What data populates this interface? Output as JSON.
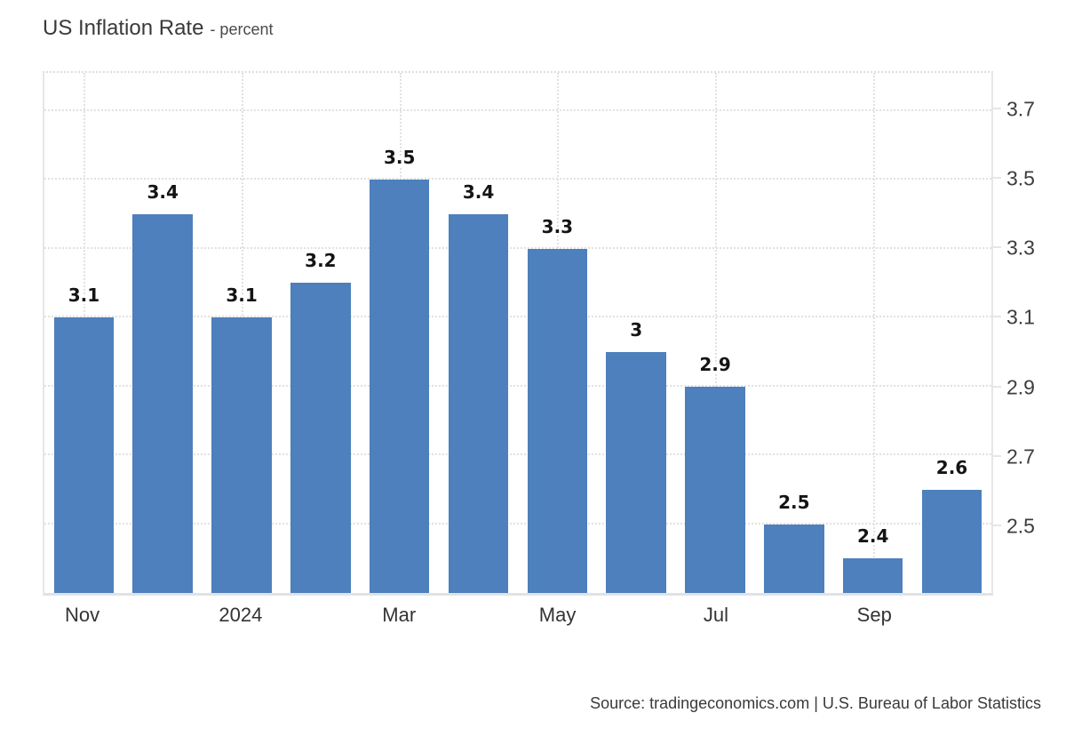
{
  "header": {
    "title": "US Inflation Rate",
    "subtitle": "- percent"
  },
  "footer": {
    "source": "Source: tradingeconomics.com | U.S. Bureau of Labor Statistics"
  },
  "chart_data": {
    "type": "bar",
    "title": "US Inflation Rate",
    "ylabel": "percent",
    "values": [
      3.1,
      3.4,
      3.1,
      3.2,
      3.5,
      3.4,
      3.3,
      3.0,
      2.9,
      2.5,
      2.4,
      2.6
    ],
    "bar_labels": [
      "3.1",
      "3.4",
      "3.1",
      "3.2",
      "3.5",
      "3.4",
      "3.3",
      "3",
      "2.9",
      "2.5",
      "2.4",
      "2.6"
    ],
    "num_slots": 12,
    "x_tick_labels": [
      {
        "slot": 0,
        "label": "Nov"
      },
      {
        "slot": 2,
        "label": "2024"
      },
      {
        "slot": 4,
        "label": "Mar"
      },
      {
        "slot": 6,
        "label": "May"
      },
      {
        "slot": 8,
        "label": "Jul"
      },
      {
        "slot": 10,
        "label": "Sep"
      }
    ],
    "y_ticks": [
      2.5,
      2.7,
      2.9,
      3.1,
      3.3,
      3.5,
      3.7
    ],
    "ylim": [
      2.3,
      3.81
    ],
    "grid": "dotted",
    "legend": "none",
    "colors": {
      "bar": "#4d80bc",
      "gridline": "#e1e1e1",
      "axis_border": "#e6e6e6",
      "baseline": "#dfe3e8",
      "value_label": "#141414",
      "tick_text": "#3d3d3d"
    }
  }
}
